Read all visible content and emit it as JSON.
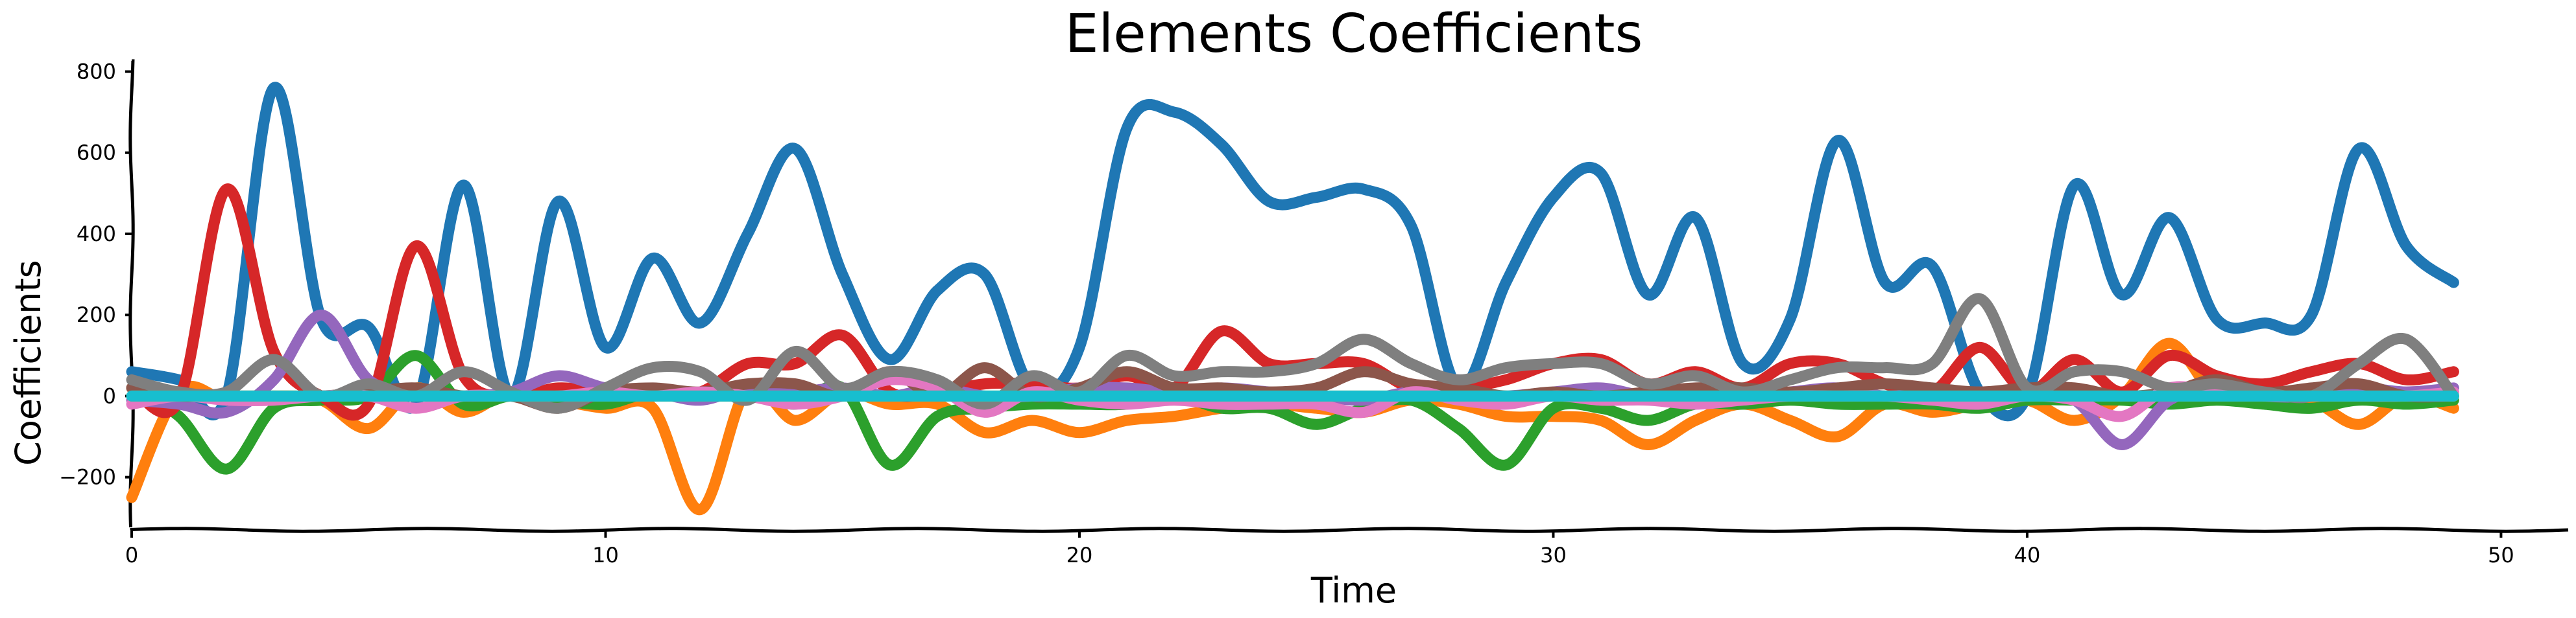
{
  "chart_data": {
    "type": "line",
    "title": "Elements Coefficients",
    "xlabel": "Time",
    "ylabel": "Coefficients",
    "xlim": [
      0,
      51.5
    ],
    "ylim": [
      -330,
      820
    ],
    "xticks": [
      0,
      10,
      20,
      30,
      40,
      50
    ],
    "yticks": [
      -200,
      0,
      200,
      400,
      600,
      800
    ],
    "ytick_labels": [
      "−200",
      "0",
      "200",
      "400",
      "600",
      "800"
    ],
    "grid": false,
    "legend": "none",
    "x": [
      0,
      1,
      2,
      3,
      4,
      5,
      6,
      7,
      8,
      9,
      10,
      11,
      12,
      13,
      14,
      15,
      16,
      17,
      18,
      19,
      20,
      21,
      22,
      23,
      24,
      25,
      26,
      27,
      28,
      29,
      30,
      31,
      32,
      33,
      34,
      35,
      36,
      37,
      38,
      39,
      40,
      41,
      42,
      43,
      44,
      45,
      46,
      47,
      48,
      49
    ],
    "series": [
      {
        "color": "#1f77b4",
        "values": [
          60,
          40,
          0,
          760,
          190,
          170,
          -20,
          520,
          0,
          480,
          120,
          340,
          180,
          400,
          610,
          300,
          90,
          260,
          300,
          20,
          120,
          660,
          700,
          620,
          480,
          490,
          510,
          420,
          20,
          280,
          490,
          550,
          250,
          440,
          80,
          190,
          630,
          280,
          320,
          10,
          0,
          520,
          250,
          440,
          190,
          180,
          200,
          610,
          370,
          280
        ]
      },
      {
        "color": "#ff7f0e",
        "values": [
          -250,
          10,
          -10,
          0,
          -10,
          -80,
          20,
          -40,
          10,
          -10,
          -30,
          -30,
          -280,
          20,
          -60,
          10,
          -20,
          -20,
          -90,
          -60,
          -90,
          -60,
          -50,
          -30,
          -20,
          -30,
          -40,
          -10,
          -20,
          -50,
          -50,
          -60,
          -120,
          -60,
          -20,
          -60,
          -100,
          -20,
          -40,
          -20,
          -10,
          -60,
          0,
          130,
          0,
          0,
          -10,
          -70,
          0,
          -30
        ]
      },
      {
        "color": "#2ca02c",
        "values": [
          20,
          -50,
          -180,
          -30,
          -10,
          0,
          100,
          -20,
          0,
          -10,
          -20,
          10,
          0,
          10,
          -20,
          20,
          -170,
          -50,
          -30,
          -20,
          -20,
          -20,
          0,
          -30,
          -30,
          -70,
          -30,
          -10,
          -80,
          -170,
          -30,
          -30,
          -60,
          -20,
          -20,
          -10,
          -20,
          -20,
          -20,
          -30,
          -10,
          -10,
          -10,
          -20,
          -10,
          -20,
          -30,
          -10,
          -20,
          -10
        ]
      },
      {
        "color": "#d62728",
        "values": [
          20,
          -10,
          510,
          110,
          0,
          -20,
          370,
          50,
          0,
          20,
          10,
          10,
          10,
          80,
          80,
          150,
          10,
          10,
          30,
          30,
          20,
          50,
          20,
          160,
          80,
          80,
          80,
          20,
          20,
          40,
          80,
          90,
          30,
          60,
          20,
          80,
          80,
          30,
          10,
          120,
          10,
          90,
          10,
          100,
          50,
          30,
          60,
          80,
          40,
          60
        ]
      },
      {
        "color": "#9467bd",
        "values": [
          -10,
          -20,
          -40,
          40,
          200,
          40,
          10,
          0,
          10,
          50,
          20,
          10,
          -10,
          20,
          10,
          20,
          0,
          20,
          0,
          0,
          20,
          20,
          10,
          20,
          10,
          0,
          -10,
          10,
          0,
          0,
          10,
          20,
          0,
          10,
          0,
          10,
          20,
          0,
          10,
          10,
          10,
          -10,
          -120,
          -10,
          20,
          0,
          0,
          20,
          10,
          20
        ]
      },
      {
        "color": "#8c564b",
        "values": [
          20,
          0,
          0,
          0,
          0,
          10,
          20,
          0,
          0,
          -30,
          10,
          20,
          10,
          30,
          30,
          0,
          60,
          0,
          70,
          0,
          20,
          60,
          20,
          20,
          10,
          20,
          60,
          30,
          20,
          0,
          10,
          0,
          10,
          20,
          20,
          10,
          20,
          30,
          20,
          10,
          20,
          20,
          0,
          10,
          40,
          10,
          20,
          30,
          0,
          0
        ]
      },
      {
        "color": "#e377c2",
        "values": [
          -20,
          0,
          -10,
          -10,
          0,
          0,
          -30,
          0,
          0,
          0,
          10,
          0,
          10,
          0,
          -20,
          0,
          40,
          20,
          -40,
          10,
          -10,
          -20,
          -10,
          -20,
          -20,
          -20,
          -40,
          10,
          -10,
          -20,
          0,
          -10,
          -10,
          -20,
          -10,
          0,
          0,
          0,
          -10,
          -20,
          0,
          -10,
          -50,
          20,
          10,
          0,
          0,
          0,
          0,
          10
        ]
      },
      {
        "color": "#7f7f7f",
        "values": [
          40,
          10,
          10,
          90,
          0,
          30,
          0,
          60,
          10,
          -30,
          20,
          70,
          60,
          -10,
          110,
          20,
          60,
          40,
          -20,
          50,
          10,
          100,
          50,
          60,
          60,
          80,
          140,
          80,
          40,
          70,
          80,
          80,
          30,
          50,
          10,
          40,
          70,
          70,
          80,
          240,
          20,
          60,
          60,
          20,
          30,
          10,
          0,
          80,
          140,
          0
        ]
      },
      {
        "color": "#bcbd22",
        "values": [
          0,
          0,
          0,
          0,
          0,
          0,
          0,
          0,
          0,
          0,
          0,
          0,
          0,
          0,
          0,
          0,
          0,
          0,
          0,
          0,
          0,
          0,
          0,
          0,
          0,
          0,
          0,
          0,
          0,
          0,
          0,
          0,
          0,
          0,
          0,
          0,
          0,
          0,
          0,
          0,
          0,
          0,
          0,
          0,
          0,
          0,
          0,
          0,
          0,
          0
        ]
      },
      {
        "color": "#17becf",
        "values": [
          0,
          0,
          0,
          0,
          0,
          0,
          0,
          0,
          0,
          0,
          0,
          0,
          0,
          0,
          0,
          0,
          0,
          0,
          0,
          0,
          0,
          0,
          0,
          0,
          0,
          0,
          0,
          0,
          0,
          0,
          0,
          0,
          0,
          0,
          0,
          0,
          0,
          0,
          0,
          0,
          0,
          0,
          0,
          0,
          0,
          0,
          0,
          0,
          0,
          0
        ]
      }
    ]
  }
}
